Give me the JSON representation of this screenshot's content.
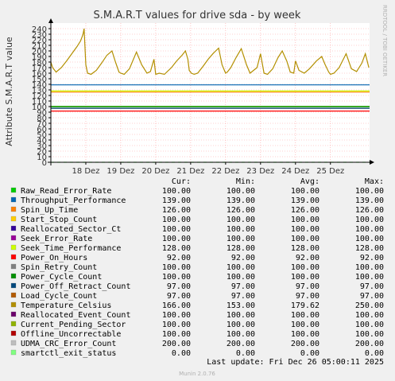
{
  "chart_data": {
    "type": "line",
    "title": "S.M.A.R.T values for drive sda - by week",
    "ylabel": "Attribute S.M.A.R.T value",
    "xlabel": "",
    "side_label": "RRDTOOL / TOBI OETIKER",
    "ylim": [
      0,
      250
    ],
    "yticks": [
      0,
      10,
      20,
      30,
      40,
      50,
      60,
      70,
      80,
      90,
      100,
      110,
      120,
      130,
      140,
      150,
      160,
      170,
      180,
      190,
      200,
      210,
      220,
      230,
      240
    ],
    "xlim": [
      0,
      9.12
    ],
    "xticks": [
      {
        "pos": 1,
        "label": "18 Dez"
      },
      {
        "pos": 2,
        "label": "19 Dez"
      },
      {
        "pos": 3,
        "label": "20 Dez"
      },
      {
        "pos": 4,
        "label": "21 Dez"
      },
      {
        "pos": 5,
        "label": "22 Dez"
      },
      {
        "pos": 6,
        "label": "23 Dez"
      },
      {
        "pos": 7,
        "label": "24 Dez"
      },
      {
        "pos": 8,
        "label": "25 Dez"
      }
    ],
    "grid": true,
    "temperature_series": {
      "x": [
        0,
        0.05,
        0.15,
        0.3,
        0.45,
        0.6,
        0.75,
        0.85,
        0.92,
        0.95,
        1.0,
        1.05,
        1.15,
        1.3,
        1.45,
        1.6,
        1.75,
        1.85,
        1.95,
        2.0,
        2.1,
        2.25,
        2.45,
        2.6,
        2.75,
        2.85,
        2.95,
        3.0,
        3.1,
        3.25,
        3.45,
        3.6,
        3.75,
        3.85,
        3.92,
        3.96,
        4.02,
        4.1,
        4.2,
        4.35,
        4.5,
        4.65,
        4.8,
        4.9,
        5.0,
        5.05,
        5.15,
        5.3,
        5.45,
        5.6,
        5.7,
        5.8,
        5.9,
        6.0,
        6.1,
        6.2,
        6.35,
        6.5,
        6.62,
        6.75,
        6.85,
        6.95,
        7.0,
        7.1,
        7.25,
        7.4,
        7.6,
        7.75,
        7.85,
        7.95,
        8.0,
        8.1,
        8.25,
        8.45,
        8.6,
        8.75,
        8.9,
        9.0,
        9.1
      ],
      "y": [
        180,
        170,
        162,
        170,
        182,
        195,
        208,
        218,
        230,
        240,
        175,
        160,
        158,
        165,
        178,
        192,
        200,
        180,
        162,
        160,
        158,
        168,
        198,
        175,
        160,
        163,
        185,
        158,
        160,
        158,
        170,
        182,
        192,
        200,
        185,
        165,
        160,
        158,
        160,
        172,
        185,
        196,
        205,
        175,
        160,
        162,
        170,
        188,
        204,
        175,
        160,
        165,
        170,
        195,
        160,
        158,
        168,
        188,
        200,
        182,
        162,
        160,
        182,
        165,
        160,
        168,
        182,
        190,
        175,
        162,
        158,
        160,
        170,
        195,
        168,
        163,
        178,
        195,
        170
      ]
    },
    "series": [
      {
        "name": "Raw_Read_Error_Rate",
        "color": "#00cc00",
        "cur": "100.00",
        "min": "100.00",
        "avg": "100.00",
        "max": "100.00",
        "value": 100
      },
      {
        "name": "Throughput_Performance",
        "color": "#0066b3",
        "cur": "139.00",
        "min": "139.00",
        "avg": "139.00",
        "max": "139.00",
        "value": 139
      },
      {
        "name": "Spin_Up_Time",
        "color": "#ff8000",
        "cur": "126.00",
        "min": "126.00",
        "avg": "126.00",
        "max": "126.00",
        "value": 126
      },
      {
        "name": "Start_Stop_Count",
        "color": "#ffcc00",
        "cur": "100.00",
        "min": "100.00",
        "avg": "100.00",
        "max": "100.00",
        "value": 100
      },
      {
        "name": "Reallocated_Sector_Ct",
        "color": "#330099",
        "cur": "100.00",
        "min": "100.00",
        "avg": "100.00",
        "max": "100.00",
        "value": 100
      },
      {
        "name": "Seek_Error_Rate",
        "color": "#990099",
        "cur": "100.00",
        "min": "100.00",
        "avg": "100.00",
        "max": "100.00",
        "value": 100
      },
      {
        "name": "Seek_Time_Performance",
        "color": "#ccff00",
        "cur": "128.00",
        "min": "128.00",
        "avg": "128.00",
        "max": "128.00",
        "value": 128
      },
      {
        "name": "Power_On_Hours",
        "color": "#ff0000",
        "cur": "92.00",
        "min": "92.00",
        "avg": "92.00",
        "max": "92.00",
        "value": 92
      },
      {
        "name": "Spin_Retry_Count",
        "color": "#808080",
        "cur": "100.00",
        "min": "100.00",
        "avg": "100.00",
        "max": "100.00",
        "value": 100
      },
      {
        "name": "Power_Cycle_Count",
        "color": "#008f00",
        "cur": "100.00",
        "min": "100.00",
        "avg": "100.00",
        "max": "100.00",
        "value": 100
      },
      {
        "name": "Power_Off_Retract_Count",
        "color": "#00487d",
        "cur": "97.00",
        "min": "97.00",
        "avg": "97.00",
        "max": "97.00",
        "value": 97
      },
      {
        "name": "Load_Cycle_Count",
        "color": "#b35a00",
        "cur": "97.00",
        "min": "97.00",
        "avg": "97.00",
        "max": "97.00",
        "value": 97
      },
      {
        "name": "Temperature_Celsius",
        "color": "#b38f00",
        "cur": "166.00",
        "min": "153.00",
        "avg": "179.62",
        "max": "250.00",
        "value": null
      },
      {
        "name": "Reallocated_Event_Count",
        "color": "#6b006b",
        "cur": "100.00",
        "min": "100.00",
        "avg": "100.00",
        "max": "100.00",
        "value": 100
      },
      {
        "name": "Current_Pending_Sector",
        "color": "#8fb300",
        "cur": "100.00",
        "min": "100.00",
        "avg": "100.00",
        "max": "100.00",
        "value": 100
      },
      {
        "name": "Offline_Uncorrectable",
        "color": "#b30000",
        "cur": "100.00",
        "min": "100.00",
        "avg": "100.00",
        "max": "100.00",
        "value": 100
      },
      {
        "name": "UDMA_CRC_Error_Count",
        "color": "#bebebe",
        "cur": "200.00",
        "min": "200.00",
        "avg": "200.00",
        "max": "200.00",
        "value": null
      },
      {
        "name": "smartctl_exit_status",
        "color": "#80ff80",
        "cur": "0.00",
        "min": "0.00",
        "avg": "0.00",
        "max": "0.00",
        "value": 0
      }
    ],
    "legend_headers": {
      "cur": "Cur:",
      "min": "Min:",
      "avg": "Avg:",
      "max": "Max:"
    }
  },
  "last_update": "Last update: Fri Dec 26 05:00:11 2025",
  "footer": "Munin 2.0.76"
}
